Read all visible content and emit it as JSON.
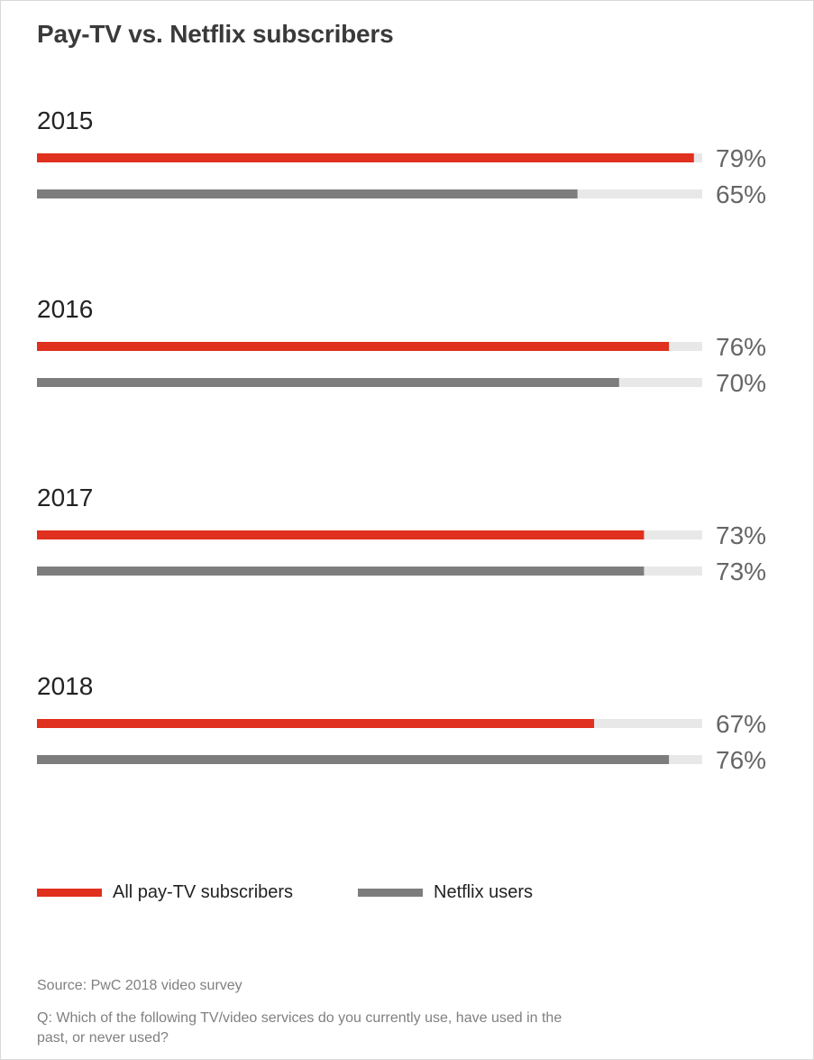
{
  "chart_data": {
    "type": "bar",
    "orientation": "horizontal",
    "title": "Pay-TV vs. Netflix subscribers",
    "categories": [
      "2015",
      "2016",
      "2017",
      "2018"
    ],
    "series": [
      {
        "name": "All pay-TV subscribers",
        "color": "#e0301e",
        "values": [
          79,
          76,
          73,
          67
        ]
      },
      {
        "name": "Netflix users",
        "color": "#7d7d7d",
        "values": [
          65,
          70,
          73,
          76
        ]
      }
    ],
    "value_labels": [
      [
        "79%",
        "65%"
      ],
      [
        "76%",
        "70%"
      ],
      [
        "73%",
        "73%"
      ],
      [
        "67%",
        "76%"
      ]
    ],
    "xlim": [
      0,
      80
    ],
    "track_color": "#e8e8e8",
    "legend_position": "bottom-left",
    "grid": false
  },
  "footer": {
    "source": "Source: PwC 2018 video survey",
    "question": "Q: Which of the following TV/video services do you currently use, have used in the past, or never used?"
  }
}
